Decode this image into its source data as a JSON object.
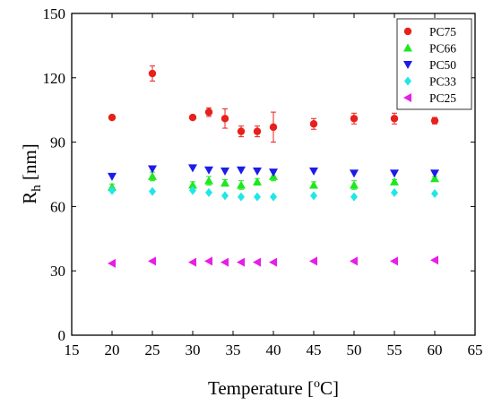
{
  "chart_data": {
    "type": "scatter",
    "title": "",
    "xlabel": {
      "main": "Temperature [",
      "sup": "o",
      "end": "C]"
    },
    "ylabel": {
      "main": "R",
      "sub": "h",
      "end": " [nm]"
    },
    "xlim": [
      15,
      65
    ],
    "ylim": [
      0,
      150
    ],
    "xticks": [
      15,
      20,
      25,
      30,
      35,
      40,
      45,
      50,
      55,
      60,
      65
    ],
    "yticks": [
      0,
      30,
      60,
      90,
      120,
      150
    ],
    "legend_position": "top-right",
    "grid": false,
    "series": [
      {
        "name": "PC75",
        "marker": "circle",
        "color": "#e8201c",
        "points": [
          {
            "x": 20,
            "y": 101.5,
            "err": 1.0
          },
          {
            "x": 25,
            "y": 122,
            "err": 3.5
          },
          {
            "x": 30,
            "y": 101.5,
            "err": 0.5
          },
          {
            "x": 32,
            "y": 104,
            "err": 2.0
          },
          {
            "x": 34,
            "y": 101,
            "err": 4.5
          },
          {
            "x": 36,
            "y": 95,
            "err": 2.5
          },
          {
            "x": 38,
            "y": 95,
            "err": 2.5
          },
          {
            "x": 40,
            "y": 97,
            "err": 7.0
          },
          {
            "x": 45,
            "y": 98.5,
            "err": 2.5
          },
          {
            "x": 50,
            "y": 101,
            "err": 2.5
          },
          {
            "x": 55,
            "y": 101,
            "err": 2.5
          },
          {
            "x": 60,
            "y": 100,
            "err": 1.5
          }
        ]
      },
      {
        "name": "PC66",
        "marker": "triangle-up",
        "color": "#1ee81e",
        "points": [
          {
            "x": 20,
            "y": 69,
            "err": 1.5
          },
          {
            "x": 25,
            "y": 74,
            "err": 2.0
          },
          {
            "x": 30,
            "y": 70,
            "err": 1.5
          },
          {
            "x": 32,
            "y": 72,
            "err": 2.0
          },
          {
            "x": 34,
            "y": 71,
            "err": 1.5
          },
          {
            "x": 36,
            "y": 70,
            "err": 2.0
          },
          {
            "x": 38,
            "y": 71.5,
            "err": 1.5
          },
          {
            "x": 40,
            "y": 74,
            "err": 2.0
          },
          {
            "x": 45,
            "y": 70,
            "err": 1.5
          },
          {
            "x": 50,
            "y": 70,
            "err": 2.0
          },
          {
            "x": 55,
            "y": 71.5,
            "err": 1.0
          },
          {
            "x": 60,
            "y": 73,
            "err": 1.0
          }
        ]
      },
      {
        "name": "PC50",
        "marker": "triangle-down",
        "color": "#1c1ce8",
        "points": [
          {
            "x": 20,
            "y": 74
          },
          {
            "x": 25,
            "y": 77.5
          },
          {
            "x": 30,
            "y": 78
          },
          {
            "x": 32,
            "y": 77
          },
          {
            "x": 34,
            "y": 76.5
          },
          {
            "x": 36,
            "y": 77
          },
          {
            "x": 38,
            "y": 76.5
          },
          {
            "x": 40,
            "y": 76
          },
          {
            "x": 45,
            "y": 76.5
          },
          {
            "x": 50,
            "y": 75.5
          },
          {
            "x": 55,
            "y": 75.5
          },
          {
            "x": 60,
            "y": 75.5
          }
        ]
      },
      {
        "name": "PC33",
        "marker": "diamond",
        "color": "#22e6e6",
        "points": [
          {
            "x": 20,
            "y": 67.5
          },
          {
            "x": 25,
            "y": 67
          },
          {
            "x": 30,
            "y": 67.5
          },
          {
            "x": 32,
            "y": 66.5
          },
          {
            "x": 34,
            "y": 65
          },
          {
            "x": 36,
            "y": 64.5
          },
          {
            "x": 38,
            "y": 64.5
          },
          {
            "x": 40,
            "y": 64.5
          },
          {
            "x": 45,
            "y": 65
          },
          {
            "x": 50,
            "y": 64.5
          },
          {
            "x": 55,
            "y": 66.5
          },
          {
            "x": 60,
            "y": 66
          }
        ]
      },
      {
        "name": "PC25",
        "marker": "triangle-left",
        "color": "#e61ee6",
        "points": [
          {
            "x": 20,
            "y": 33.5
          },
          {
            "x": 25,
            "y": 34.5
          },
          {
            "x": 30,
            "y": 34
          },
          {
            "x": 32,
            "y": 34.5
          },
          {
            "x": 34,
            "y": 34
          },
          {
            "x": 36,
            "y": 34
          },
          {
            "x": 38,
            "y": 34
          },
          {
            "x": 40,
            "y": 34
          },
          {
            "x": 45,
            "y": 34.5
          },
          {
            "x": 50,
            "y": 34.5
          },
          {
            "x": 55,
            "y": 34.5
          },
          {
            "x": 60,
            "y": 35
          }
        ]
      }
    ]
  }
}
